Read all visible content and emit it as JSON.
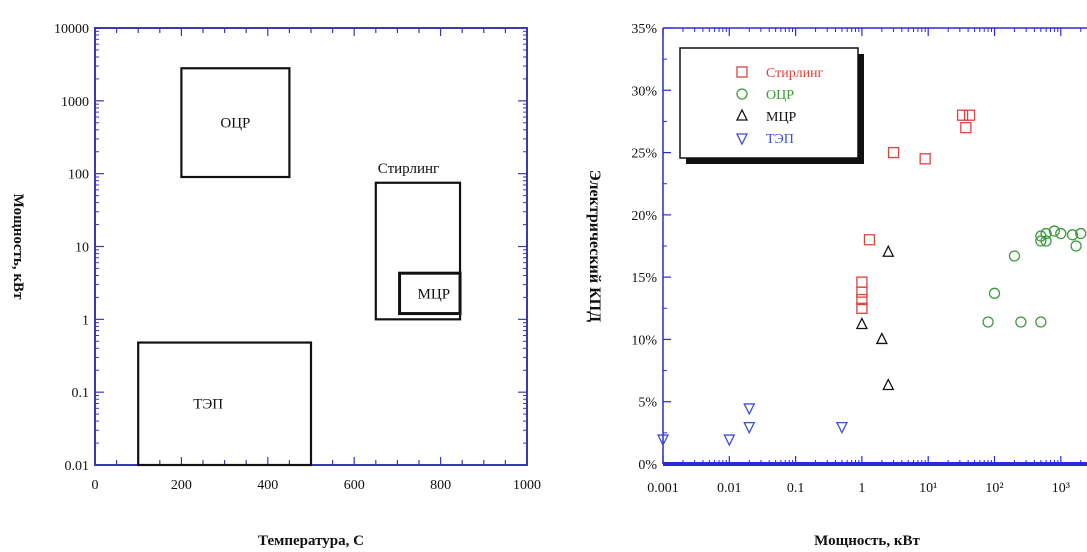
{
  "chart_data": [
    {
      "type": "box-regions",
      "xlabel": "Температура, С",
      "ylabel": "Мощность, кВт",
      "xlim": [
        0,
        1000
      ],
      "ylim": [
        0.01,
        10000
      ],
      "y_scale": "log",
      "x_ticks": [
        "0",
        "200",
        "400",
        "600",
        "800",
        "1000"
      ],
      "y_ticks": [
        "0.01",
        "0.1",
        "1",
        "10",
        "100",
        "1000",
        "10000"
      ],
      "regions": [
        {
          "name": "ОЦР",
          "x": [
            200,
            450
          ],
          "y": [
            90,
            2800
          ]
        },
        {
          "name": "Стирлинг",
          "x": [
            650,
            845
          ],
          "y": [
            1.0,
            75
          ]
        },
        {
          "name": "МЦР",
          "x": [
            705,
            845
          ],
          "y": [
            1.2,
            4.3
          ]
        },
        {
          "name": "ТЭП",
          "x": [
            100,
            500
          ],
          "y": [
            0.01,
            0.48
          ]
        }
      ]
    },
    {
      "type": "scatter",
      "xlabel": "Мощность, кВт",
      "ylabel": "Электрический КПД",
      "x_scale": "log",
      "xlim": [
        0.001,
        5000
      ],
      "ylim": [
        0,
        35
      ],
      "x_ticks": [
        "0.001",
        "0.01",
        "0.1",
        "1",
        "10¹",
        "10²",
        "10³"
      ],
      "y_ticks": [
        "0%",
        "5%",
        "10%",
        "15%",
        "20%",
        "25%",
        "30%",
        "35%"
      ],
      "legend_position": "top-left",
      "series": [
        {
          "name": "Стирлинг",
          "marker": "square",
          "color": "#d9443f",
          "points": [
            [
              1,
              12.5
            ],
            [
              1,
              13.2
            ],
            [
              1,
              13.8
            ],
            [
              1,
              14.6
            ],
            [
              1.3,
              18
            ],
            [
              3,
              25
            ],
            [
              9,
              24.5
            ],
            [
              33,
              28
            ],
            [
              37,
              27
            ],
            [
              42,
              28
            ]
          ]
        },
        {
          "name": "ОЦР",
          "marker": "circle",
          "color": "#3e9a3e",
          "points": [
            [
              80,
              11.4
            ],
            [
              100,
              13.7
            ],
            [
              200,
              16.7
            ],
            [
              250,
              11.4
            ],
            [
              500,
              11.4
            ],
            [
              500,
              18.3
            ],
            [
              500,
              17.9
            ],
            [
              600,
              18.5
            ],
            [
              600,
              17.9
            ],
            [
              800,
              18.7
            ],
            [
              1000,
              18.5
            ],
            [
              1500,
              18.4
            ],
            [
              1700,
              17.5
            ],
            [
              2000,
              18.5
            ],
            [
              2200,
              17.1
            ]
          ]
        },
        {
          "name": "МЦР",
          "marker": "triangle-up",
          "color": "#111111",
          "points": [
            [
              1,
              11.2
            ],
            [
              2,
              10
            ],
            [
              2.5,
              17
            ],
            [
              2.5,
              6.3
            ]
          ]
        },
        {
          "name": "ТЭП",
          "marker": "triangle-down",
          "color": "#3e4fd0",
          "points": [
            [
              0.001,
              2
            ],
            [
              0.01,
              2
            ],
            [
              0.02,
              4.5
            ],
            [
              0.02,
              3
            ],
            [
              0.5,
              3
            ]
          ]
        }
      ]
    }
  ]
}
